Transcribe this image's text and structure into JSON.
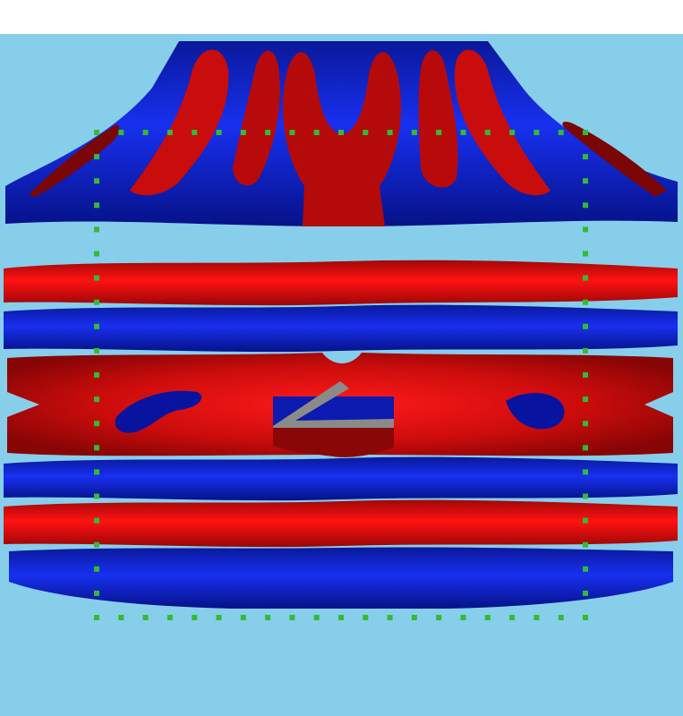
{
  "scene": {
    "colors": {
      "background_top": "#ffffff",
      "viewport_background": "#87ceeb",
      "positive_lobe": "#d41010",
      "positive_lobe_dark": "#7a0606",
      "negative_lobe": "#1028c8",
      "negative_lobe_dark": "#001070",
      "inner_object": "#8a8a8a",
      "boundary_markers": "#33bb33"
    }
  }
}
